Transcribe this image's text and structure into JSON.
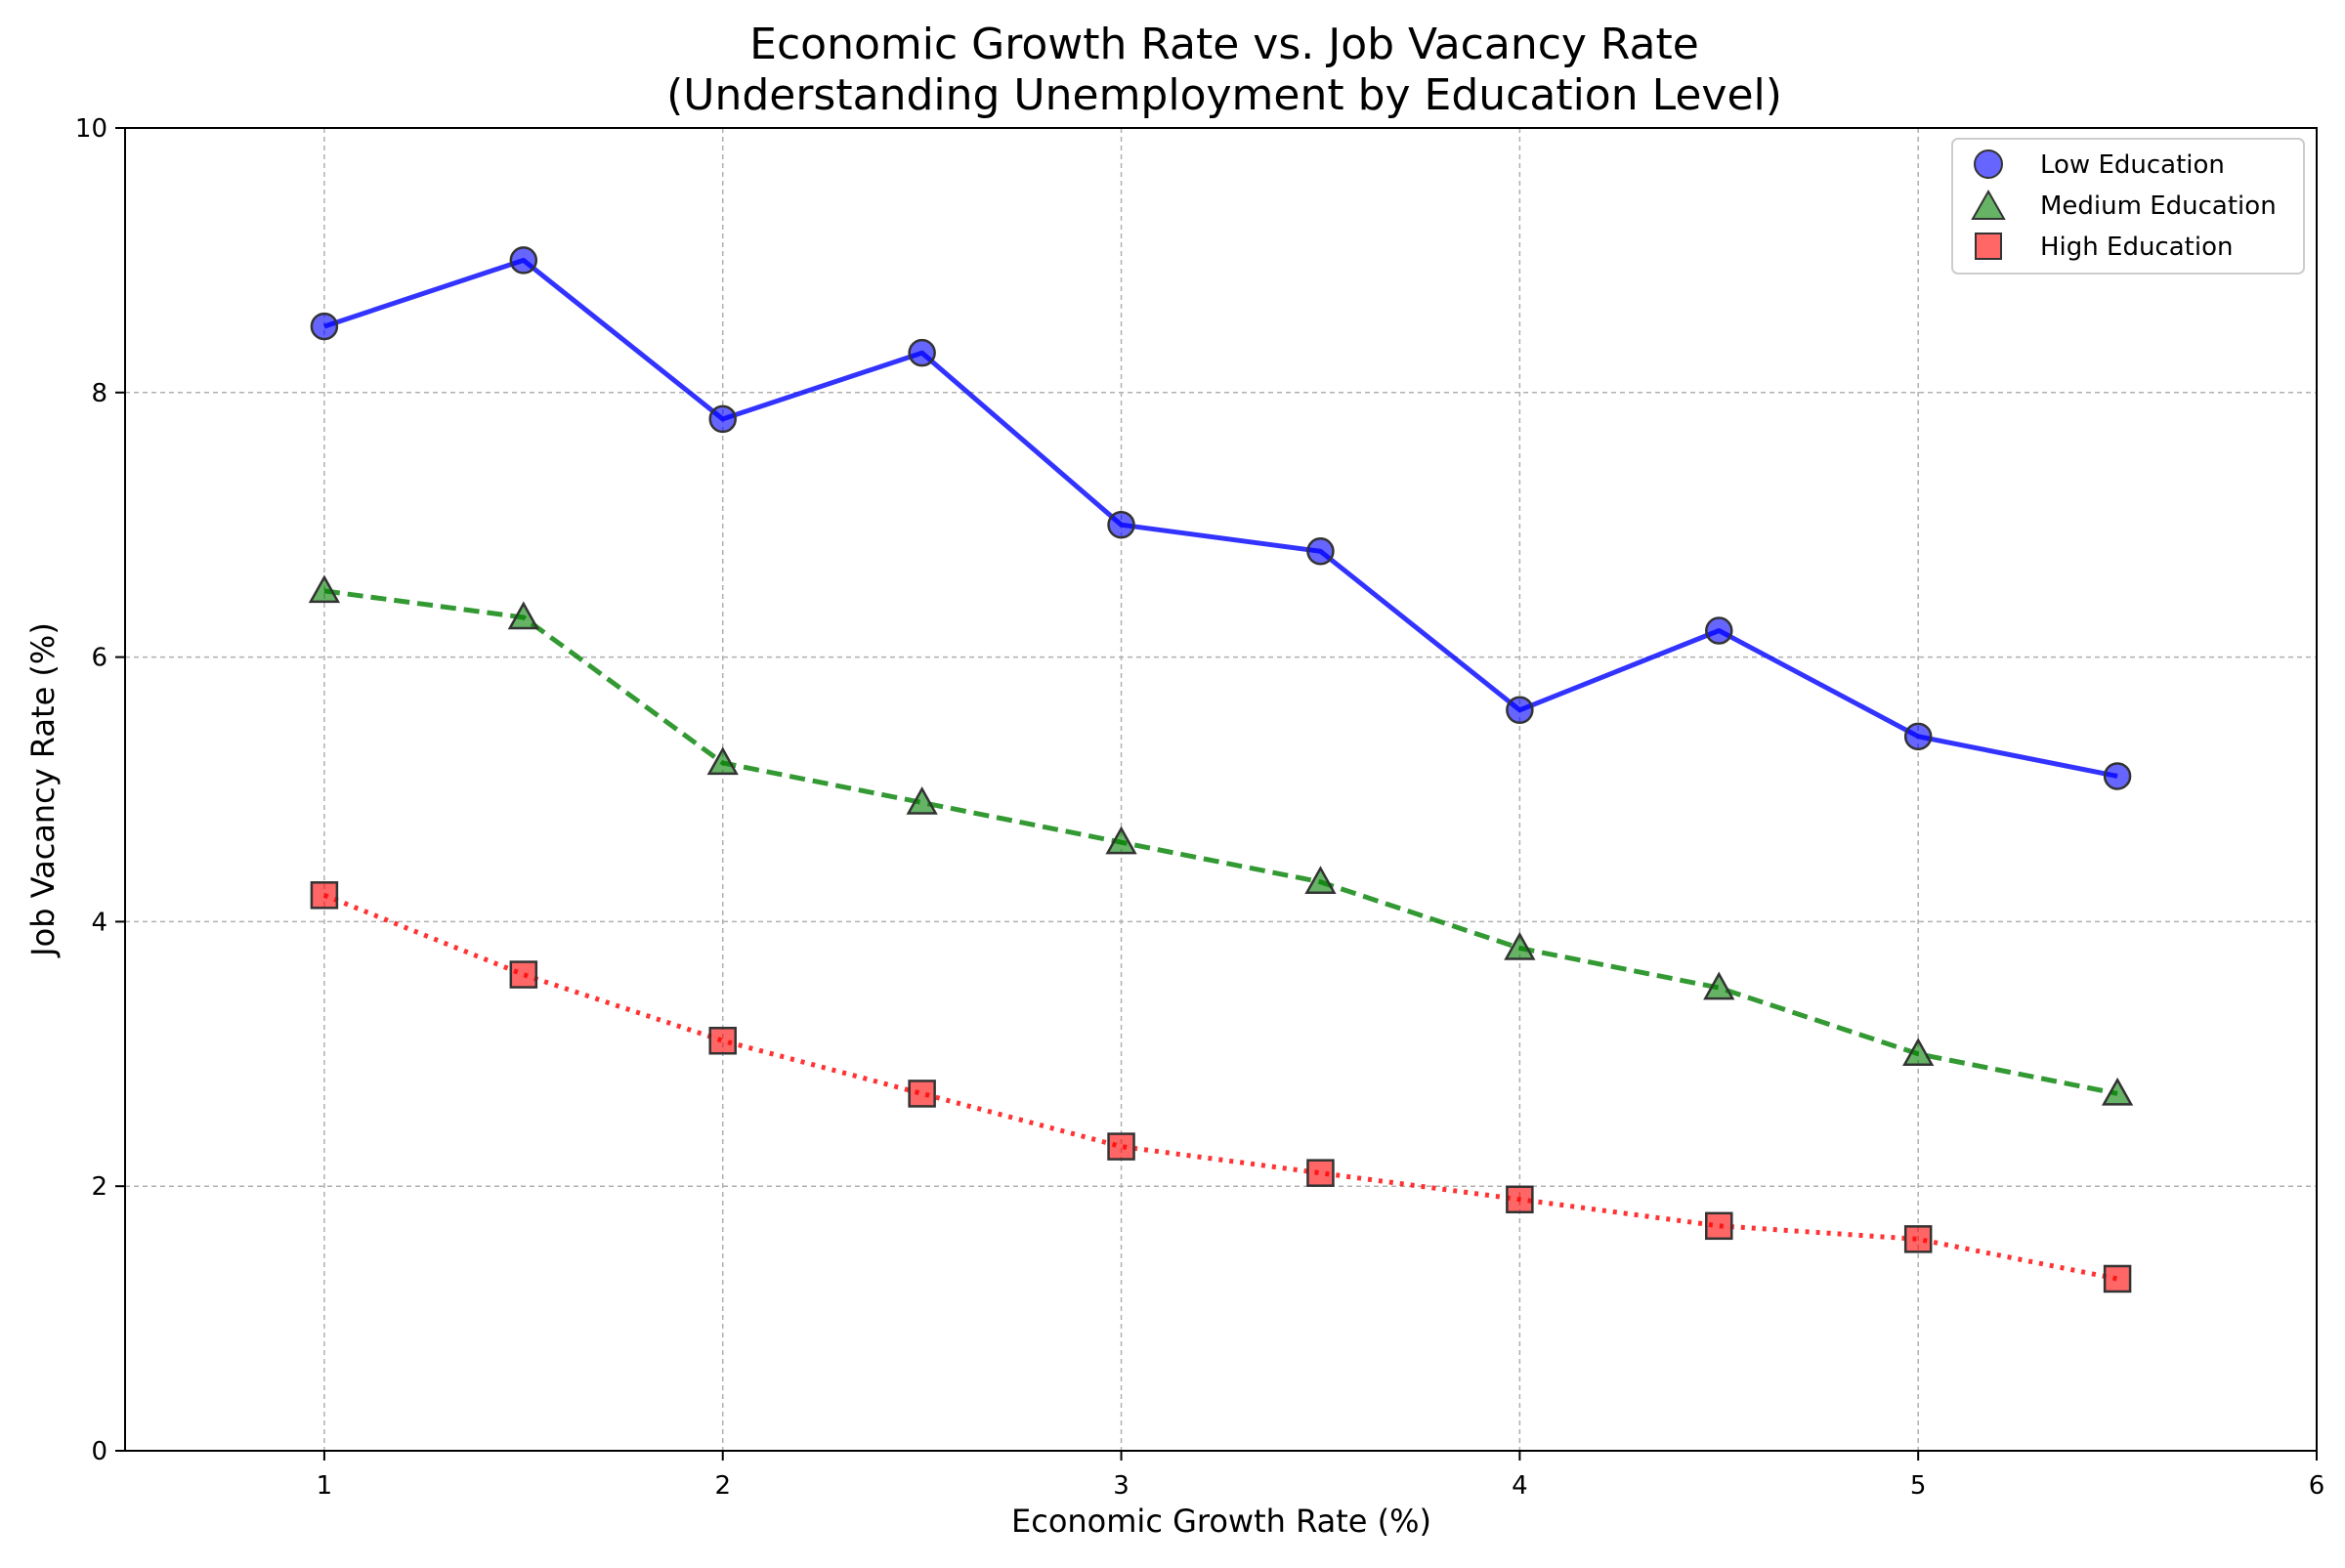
{
  "chart_data": {
    "type": "line",
    "title_line1": "Economic Growth Rate vs. Job Vacancy Rate",
    "title_line2": "(Understanding Unemployment by Education Level)",
    "xlabel": "Economic Growth Rate (%)",
    "ylabel": "Job Vacancy Rate (%)",
    "xlim": [
      0.5,
      6
    ],
    "ylim": [
      0,
      10
    ],
    "xticks": [
      1,
      2,
      3,
      4,
      5,
      6
    ],
    "yticks": [
      0,
      2,
      4,
      6,
      8,
      10
    ],
    "grid": true,
    "legend_position": "top-right",
    "x": [
      1,
      1.5,
      2,
      2.5,
      3,
      3.5,
      4,
      4.5,
      5,
      5.5
    ],
    "series": [
      {
        "name": "Low Education",
        "values": [
          8.5,
          9.0,
          7.8,
          8.3,
          7.0,
          6.8,
          5.6,
          6.2,
          5.4,
          5.1
        ],
        "color": "#0000ff",
        "line_style": "solid",
        "marker": "circle"
      },
      {
        "name": "Medium Education",
        "values": [
          6.5,
          6.3,
          5.2,
          4.9,
          4.6,
          4.3,
          3.8,
          3.5,
          3.0,
          2.7
        ],
        "color": "#008000",
        "line_style": "dashed",
        "marker": "triangle"
      },
      {
        "name": "High Education",
        "values": [
          4.2,
          3.6,
          3.1,
          2.7,
          2.3,
          2.1,
          1.9,
          1.7,
          1.6,
          1.3
        ],
        "color": "#ff0000",
        "line_style": "dotted",
        "marker": "square"
      }
    ]
  }
}
